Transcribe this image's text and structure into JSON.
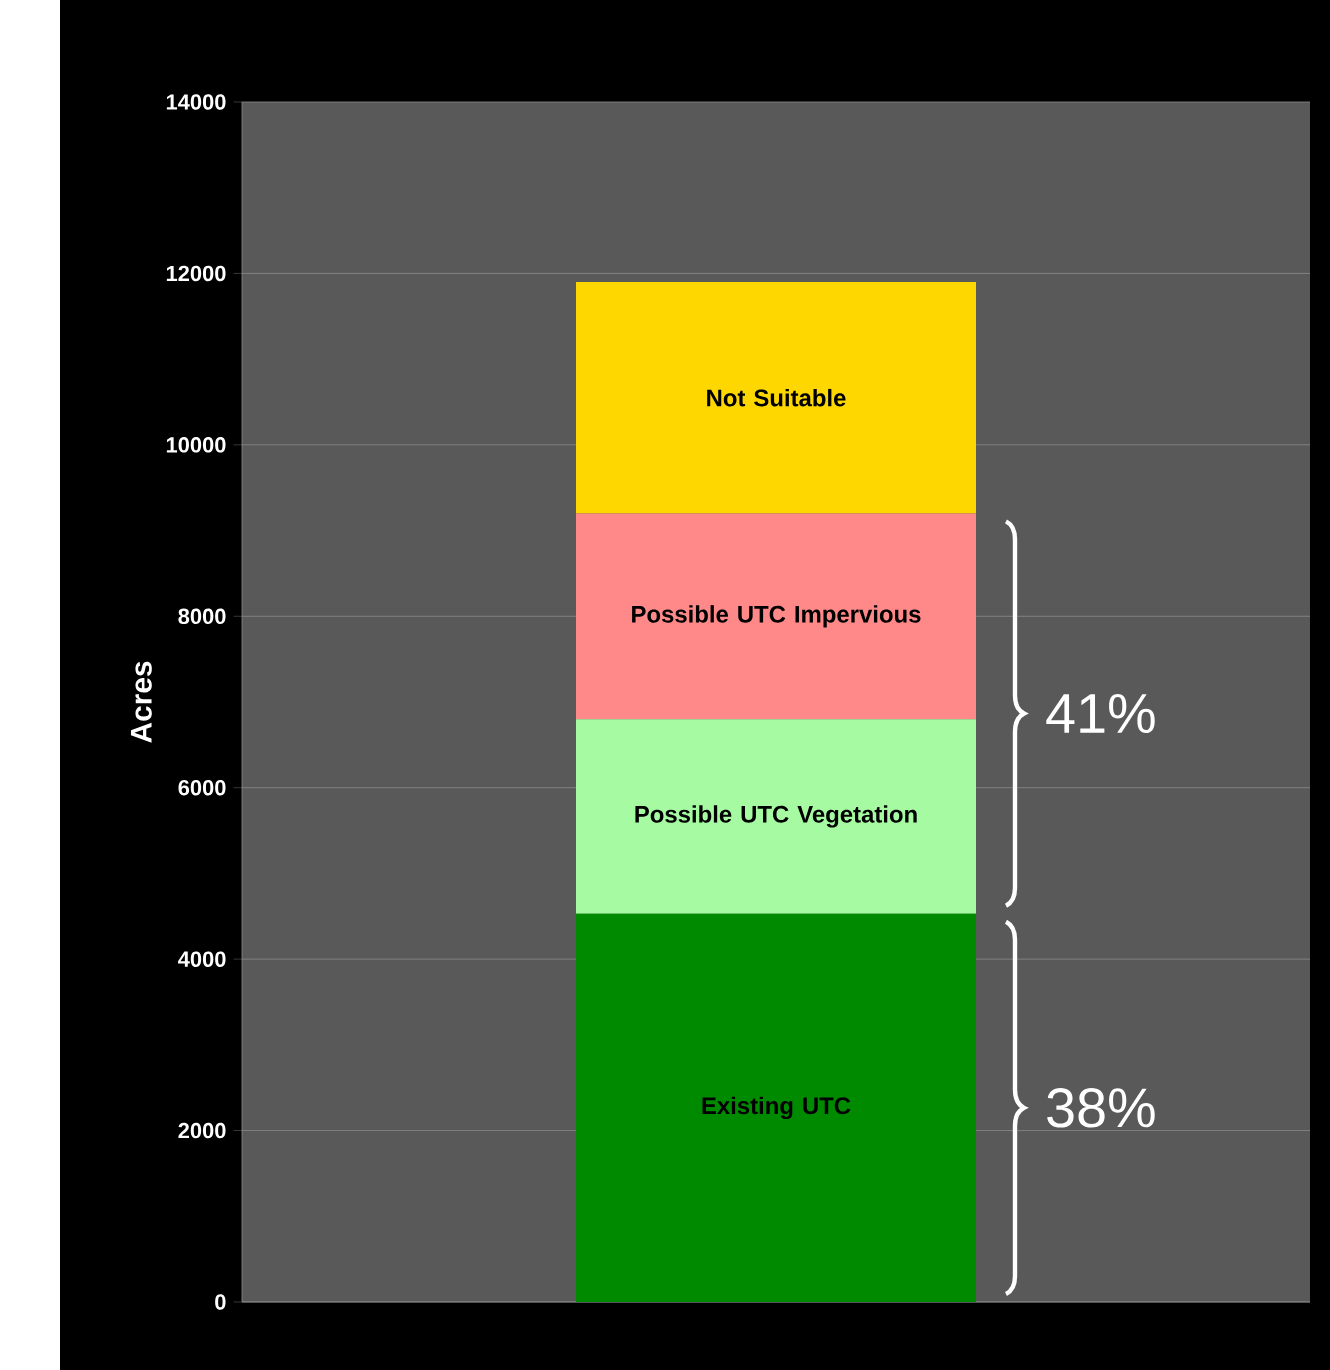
{
  "chart_data": {
    "type": "bar",
    "stacked": true,
    "ylabel": "Acres",
    "categories": [
      null
    ],
    "ylim": [
      0,
      14000
    ],
    "yticks": [
      0,
      2000,
      4000,
      6000,
      8000,
      10000,
      12000,
      14000
    ],
    "grid": "y",
    "series": [
      {
        "name": "Existing UTC",
        "color": "#008a00",
        "values": [
          4530
        ]
      },
      {
        "name": "Possible UTC Vegetation",
        "color": "#a6fba2",
        "values": [
          2270
        ]
      },
      {
        "name": "Possible UTC Impervious",
        "color": "#ff8888",
        "values": [
          2400
        ]
      },
      {
        "name": "Not Suitable",
        "color": "#fed700",
        "values": [
          2700
        ]
      }
    ],
    "annotations": [
      "41%",
      "38%"
    ]
  }
}
